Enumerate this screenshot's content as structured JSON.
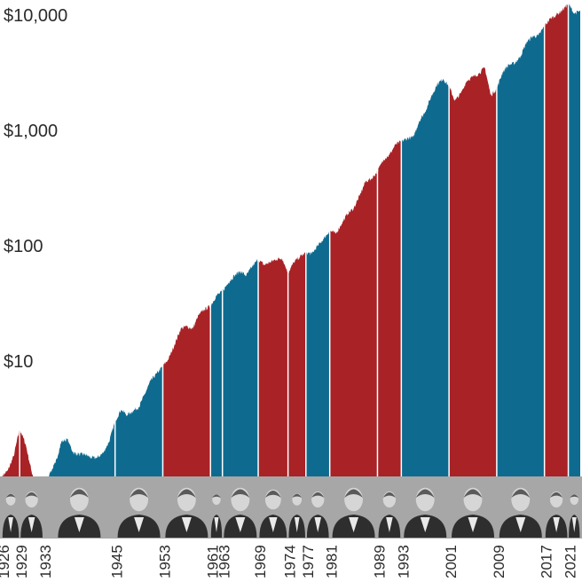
{
  "chart_data": {
    "type": "area",
    "title": "",
    "xlabel": "",
    "ylabel": "",
    "y_scale": "log",
    "ylim": [
      1,
      13000
    ],
    "xlim": [
      1926,
      2023
    ],
    "grid": false,
    "y_ticks": [
      {
        "value": 10000,
        "label": "$10,000"
      },
      {
        "value": 1000,
        "label": "$1,000"
      },
      {
        "value": 100,
        "label": "$100"
      },
      {
        "value": 10,
        "label": "$10"
      }
    ],
    "x_ticks": [
      1926,
      1929,
      1933,
      1945,
      1953,
      1961,
      1963,
      1969,
      1974,
      1977,
      1981,
      1989,
      1993,
      2001,
      2009,
      2017,
      2021
    ],
    "party_colors": {
      "Republican": "#a82226",
      "Democratic": "#0e6b8f"
    },
    "terms": [
      {
        "start": 1926,
        "end": 1929,
        "party": "Republican"
      },
      {
        "start": 1929,
        "end": 1933,
        "party": "Republican"
      },
      {
        "start": 1933,
        "end": 1945,
        "party": "Democratic"
      },
      {
        "start": 1945,
        "end": 1953,
        "party": "Democratic"
      },
      {
        "start": 1953,
        "end": 1961,
        "party": "Republican"
      },
      {
        "start": 1961,
        "end": 1963,
        "party": "Democratic"
      },
      {
        "start": 1963,
        "end": 1969,
        "party": "Democratic"
      },
      {
        "start": 1969,
        "end": 1974,
        "party": "Republican"
      },
      {
        "start": 1974,
        "end": 1977,
        "party": "Republican"
      },
      {
        "start": 1977,
        "end": 1981,
        "party": "Democratic"
      },
      {
        "start": 1981,
        "end": 1989,
        "party": "Republican"
      },
      {
        "start": 1989,
        "end": 1993,
        "party": "Republican"
      },
      {
        "start": 1993,
        "end": 2001,
        "party": "Democratic"
      },
      {
        "start": 2001,
        "end": 2009,
        "party": "Republican"
      },
      {
        "start": 2009,
        "end": 2017,
        "party": "Democratic"
      },
      {
        "start": 2017,
        "end": 2021,
        "party": "Republican"
      },
      {
        "start": 2021,
        "end": 2023,
        "party": "Democratic"
      }
    ],
    "series": [
      {
        "x": [
          1926,
          1927,
          1928,
          1929,
          1930,
          1931,
          1932,
          1933,
          1934,
          1935,
          1936,
          1937,
          1938,
          1939,
          1940,
          1941,
          1942,
          1943,
          1944,
          1945,
          1946,
          1947,
          1948,
          1949,
          1950,
          1951,
          1952,
          1953,
          1954,
          1955,
          1956,
          1957,
          1958,
          1959,
          1960,
          1961,
          1962,
          1963,
          1964,
          1965,
          1966,
          1967,
          1968,
          1969,
          1970,
          1971,
          1972,
          1973,
          1974,
          1975,
          1976,
          1977,
          1978,
          1979,
          1980,
          1981,
          1982,
          1983,
          1984,
          1985,
          1986,
          1987,
          1988,
          1989,
          1990,
          1991,
          1992,
          1993,
          1994,
          1995,
          1996,
          1997,
          1998,
          1999,
          2000,
          2001,
          2002,
          2003,
          2004,
          2005,
          2006,
          2007,
          2008,
          2009,
          2010,
          2011,
          2012,
          2013,
          2014,
          2015,
          2016,
          2017,
          2018,
          2019,
          2020,
          2021,
          2022,
          2023
        ],
        "y": [
          1.0,
          1.12,
          1.5,
          2.6,
          1.9,
          1.1,
          0.8,
          0.9,
          1.05,
          1.3,
          2.0,
          2.1,
          1.6,
          1.55,
          1.55,
          1.45,
          1.45,
          1.6,
          2.0,
          3.0,
          3.8,
          3.4,
          3.7,
          4.0,
          5.2,
          6.8,
          7.8,
          9.0,
          10.5,
          14.0,
          19.0,
          20.0,
          19.0,
          25.0,
          28.0,
          30.0,
          37.0,
          40.0,
          48.0,
          55.0,
          60.0,
          55.0,
          66.0,
          76.0,
          68.0,
          72.0,
          76.0,
          78.0,
          58.0,
          72.0,
          80.0,
          87.0,
          85.0,
          100.0,
          115.0,
          135.0,
          127.0,
          155.0,
          190.0,
          210.0,
          270.0,
          360.0,
          380.0,
          440.0,
          560.0,
          610.0,
          750.0,
          800.0,
          850.0,
          870.0,
          1200.0,
          1450.0,
          1950.0,
          2500.0,
          2800.0,
          2400.0,
          1800.0,
          2100.0,
          2700.0,
          2900.0,
          3100.0,
          3500.0,
          2000.0,
          2300.0,
          3200.0,
          3700.0,
          3800.0,
          4400.0,
          5800.0,
          6500.0,
          6600.0,
          8000.0,
          9300.0,
          10000.0,
          11000.0,
          12500.0,
          10300.0,
          10800.0
        ]
      }
    ]
  },
  "colors": {
    "axis_band": "#a7a7a7",
    "text": "#2b2b2b"
  },
  "portrait_icons": [
    "president-portrait-icon",
    "president-portrait-icon",
    "president-portrait-icon",
    "president-portrait-icon",
    "president-portrait-icon",
    "president-portrait-icon",
    "president-portrait-icon",
    "president-portrait-icon",
    "president-portrait-icon",
    "president-portrait-icon",
    "president-portrait-icon",
    "president-portrait-icon",
    "president-portrait-icon",
    "president-portrait-icon",
    "president-portrait-icon",
    "president-portrait-icon",
    "president-portrait-icon"
  ]
}
